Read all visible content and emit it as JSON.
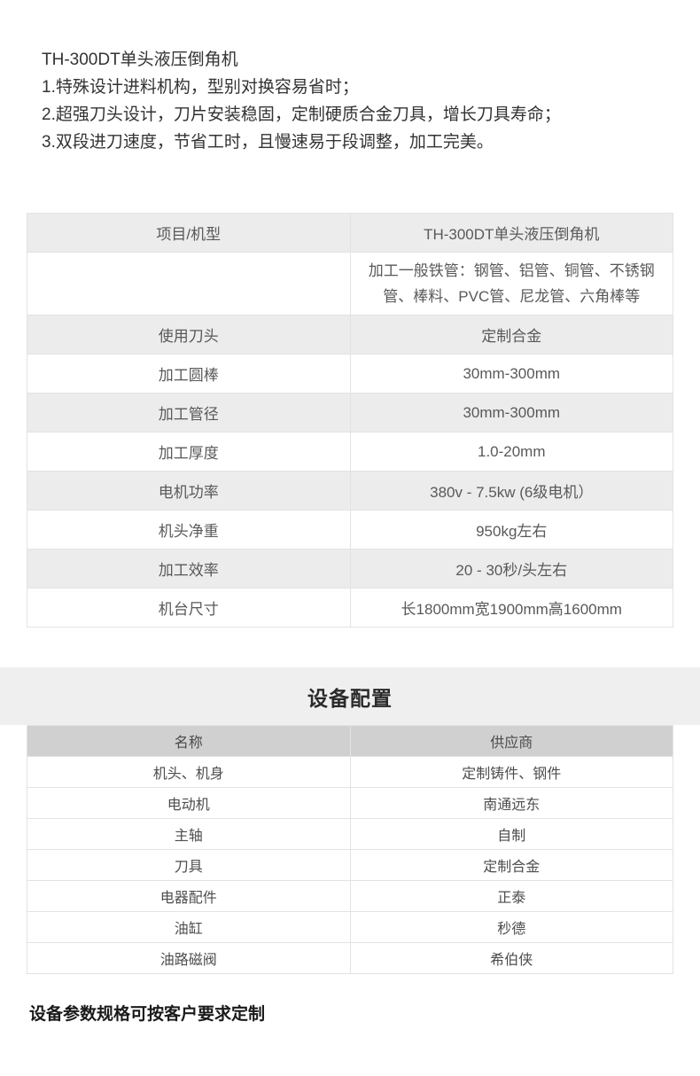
{
  "intro": {
    "title": "TH-300DT单头液压倒角机",
    "features": [
      "1.特殊设计进料机构，型别对换容易省时；",
      "2.超强刀头设计，刀片安装稳固，定制硬质合金刀具，增长刀具寿命；",
      "3.双段进刀速度，节省工时，且慢速易于段调整，加工完美。"
    ]
  },
  "spec_table": {
    "rows": [
      {
        "label": "项目/机型",
        "value": "TH-300DT单头液压倒角机"
      },
      {
        "label": "",
        "value": "加工一般铁管：钢管、铝管、铜管、不锈钢管、棒料、PVC管、尼龙管、六角棒等"
      },
      {
        "label": "使用刀头",
        "value": "定制合金"
      },
      {
        "label": "加工圆棒",
        "value": "30mm-300mm"
      },
      {
        "label": "加工管径",
        "value": "30mm-300mm"
      },
      {
        "label": "加工厚度",
        "value": "1.0-20mm"
      },
      {
        "label": "电机功率",
        "value": "380v - 7.5kw (6级电机）"
      },
      {
        "label": "机头净重",
        "value": "950kg左右"
      },
      {
        "label": "加工效率",
        "value": "20 - 30秒/头左右"
      },
      {
        "label": "机台尺寸",
        "value": "长1800mm宽1900mm高1600mm"
      }
    ]
  },
  "config_section": {
    "title": "设备配置",
    "headers": [
      "名称",
      "供应商"
    ],
    "rows": [
      [
        "机头、机身",
        "定制铸件、钢件"
      ],
      [
        "电动机",
        "南通远东"
      ],
      [
        "主轴",
        "自制"
      ],
      [
        "刀具",
        "定制合金"
      ],
      [
        "电器配件",
        "正泰"
      ],
      [
        "油缸",
        "秒德"
      ],
      [
        "油路磁阀",
        "希伯侠"
      ]
    ]
  },
  "footer": {
    "note": "设备参数规格可按客户要求定制"
  },
  "colors": {
    "shaded_row": "#ececec",
    "banner_bg": "#efefef",
    "header_bg": "#d0d0d0",
    "border": "#e3e3e3",
    "body_text": "#595959",
    "heading_text": "#333333"
  }
}
